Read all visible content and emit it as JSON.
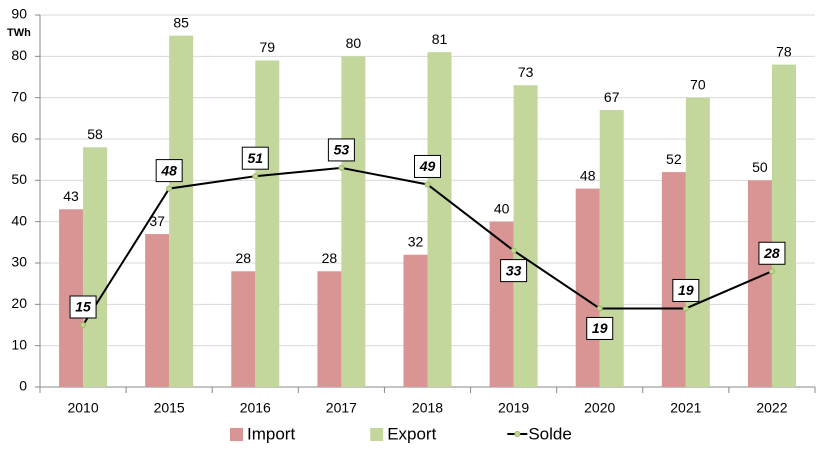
{
  "chart_data": {
    "type": "bar-line",
    "y_label": "TWh",
    "categories": [
      "2010",
      "2015",
      "2016",
      "2017",
      "2018",
      "2019",
      "2020",
      "2021",
      "2022"
    ],
    "series": [
      {
        "name": "Import",
        "type": "bar",
        "color": "#d99594",
        "values": [
          43,
          37,
          28,
          28,
          32,
          40,
          48,
          52,
          50
        ]
      },
      {
        "name": "Export",
        "type": "bar",
        "color": "#c3d69b",
        "values": [
          58,
          85,
          79,
          80,
          81,
          73,
          67,
          70,
          78
        ]
      },
      {
        "name": "Solde",
        "type": "line",
        "color": "#000000",
        "values": [
          15,
          48,
          51,
          53,
          49,
          33,
          19,
          19,
          28
        ]
      }
    ],
    "ylim": [
      0,
      90
    ],
    "yticks": [
      0,
      10,
      20,
      30,
      40,
      50,
      60,
      70,
      80,
      90
    ],
    "grid": true,
    "legend": "bottom"
  }
}
